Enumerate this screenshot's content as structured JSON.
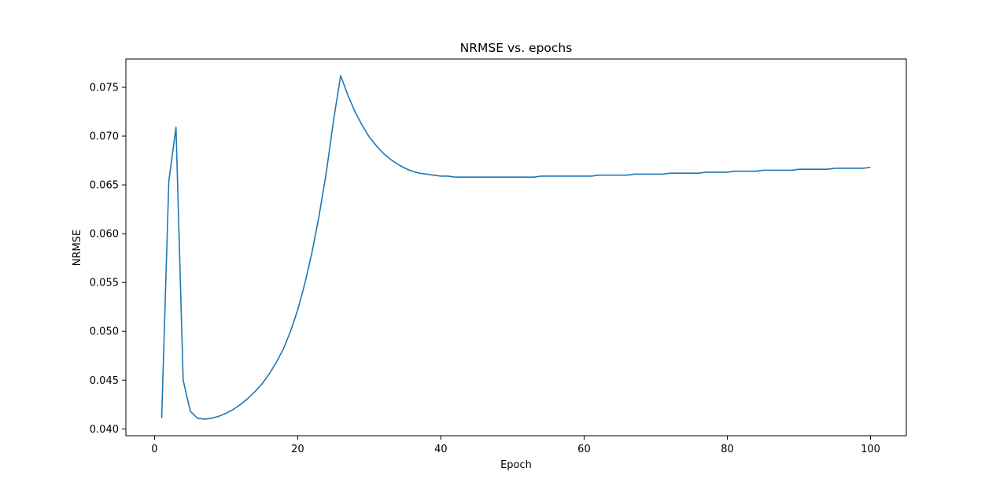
{
  "chart_data": {
    "type": "line",
    "title": "NRMSE vs. epochs",
    "xlabel": "Epoch",
    "ylabel": "NRMSE",
    "xlim": [
      -4.0,
      105.0
    ],
    "ylim": [
      0.0393,
      0.0779
    ],
    "xticks": [
      0,
      20,
      40,
      60,
      80,
      100
    ],
    "yticks": [
      0.04,
      0.045,
      0.05,
      0.055,
      0.06,
      0.065,
      0.07,
      0.075
    ],
    "xtick_labels": [
      "0",
      "20",
      "40",
      "60",
      "80",
      "100"
    ],
    "ytick_labels": [
      "0.040",
      "0.045",
      "0.050",
      "0.055",
      "0.060",
      "0.065",
      "0.070",
      "0.075"
    ],
    "grid": false,
    "series_color": "#1f77b4",
    "series": [
      {
        "x": [
          1,
          2,
          3,
          4,
          5,
          6,
          7,
          8,
          9,
          10,
          11,
          12,
          13,
          14,
          15,
          16,
          17,
          18,
          19,
          20,
          21,
          22,
          23,
          24,
          25,
          26,
          27,
          28,
          29,
          30,
          31,
          32,
          33,
          34,
          35,
          36,
          37,
          38,
          39,
          40,
          41,
          42,
          43,
          44,
          45,
          46,
          47,
          48,
          49,
          50,
          51,
          52,
          53,
          54,
          55,
          56,
          57,
          58,
          59,
          60,
          61,
          62,
          63,
          64,
          65,
          66,
          67,
          68,
          69,
          70,
          71,
          72,
          73,
          74,
          75,
          76,
          77,
          78,
          79,
          80,
          81,
          82,
          83,
          84,
          85,
          86,
          87,
          88,
          89,
          90,
          91,
          92,
          93,
          94,
          95,
          96,
          97,
          98,
          99,
          100
        ],
        "y": [
          0.0411,
          0.0654,
          0.0709,
          0.045,
          0.0418,
          0.0411,
          0.041,
          0.0411,
          0.0413,
          0.0416,
          0.042,
          0.0425,
          0.0431,
          0.0438,
          0.0446,
          0.0456,
          0.0468,
          0.0482,
          0.05,
          0.0522,
          0.0549,
          0.0581,
          0.0619,
          0.0663,
          0.0716,
          0.0762,
          0.0742,
          0.0725,
          0.0711,
          0.0699,
          0.069,
          0.0682,
          0.0676,
          0.0671,
          0.0667,
          0.0664,
          0.0662,
          0.0661,
          0.066,
          0.0659,
          0.0659,
          0.0658,
          0.0658,
          0.0658,
          0.0658,
          0.0658,
          0.0658,
          0.0658,
          0.0658,
          0.0658,
          0.0658,
          0.0658,
          0.0658,
          0.0659,
          0.0659,
          0.0659,
          0.0659,
          0.0659,
          0.0659,
          0.0659,
          0.0659,
          0.066,
          0.066,
          0.066,
          0.066,
          0.066,
          0.0661,
          0.0661,
          0.0661,
          0.0661,
          0.0661,
          0.0662,
          0.0662,
          0.0662,
          0.0662,
          0.0662,
          0.0663,
          0.0663,
          0.0663,
          0.0663,
          0.0664,
          0.0664,
          0.0664,
          0.0664,
          0.0665,
          0.0665,
          0.0665,
          0.0665,
          0.0665,
          0.0666,
          0.0666,
          0.0666,
          0.0666,
          0.0666,
          0.0667,
          0.0667,
          0.0667,
          0.0667,
          0.0667,
          0.0668
        ]
      }
    ]
  }
}
